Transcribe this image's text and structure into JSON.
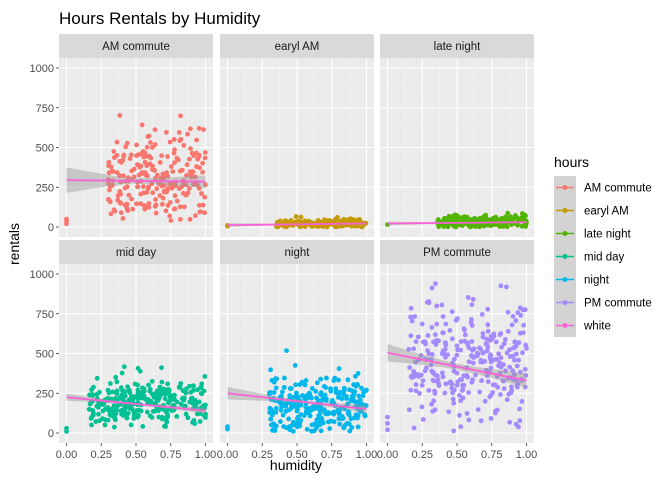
{
  "chart_data": {
    "type": "scatter",
    "title": "Hours Rentals by Humidity",
    "xlabel": "humidity",
    "ylabel": "rentals",
    "xlim": [
      0,
      1
    ],
    "ylim": [
      0,
      1000
    ],
    "x_ticks": [
      "0.00",
      "0.25",
      "0.50",
      "0.75",
      "1.00"
    ],
    "y_ticks": [
      "0",
      "250",
      "500",
      "750",
      "1000"
    ],
    "facet_layout": "2 rows x 3 columns, shared axes",
    "trend": "linear fit with grey confidence band, drawn in the color of the 'white' legend entry",
    "grid": true,
    "legend": {
      "title": "hours",
      "placement": "right",
      "entries": [
        {
          "label": "AM commute",
          "color": "#F8766D"
        },
        {
          "label": "earyl AM",
          "color": "#C49A00"
        },
        {
          "label": "late night",
          "color": "#53B400"
        },
        {
          "label": "mid day",
          "color": "#00C094"
        },
        {
          "label": "night",
          "color": "#00B6EB"
        },
        {
          "label": "PM commute",
          "color": "#A58AFF"
        },
        {
          "label": "white",
          "color": "#FB61D7"
        }
      ]
    },
    "facets": [
      {
        "label": "AM commute",
        "color": "#F8766D",
        "cluster": {
          "xmin": 0.3,
          "xmax": 1.0,
          "ymin": 40,
          "ymax": 800,
          "center": 320,
          "spread": 150,
          "n": 240
        },
        "outliers": [
          [
            0.0,
            20
          ],
          [
            0.0,
            40
          ],
          [
            0.0,
            50
          ]
        ],
        "fit": {
          "y_at_0": 295,
          "y_at_1": 285,
          "band_at_0": 80,
          "band_mid": 18,
          "band_at_1": 40
        }
      },
      {
        "label": "earyl AM",
        "color": "#C49A00",
        "cluster": {
          "xmin": 0.35,
          "xmax": 1.0,
          "ymin": 0,
          "ymax": 70,
          "center": 22,
          "spread": 15,
          "n": 180
        },
        "outliers": [
          [
            0.0,
            5
          ],
          [
            0.0,
            10
          ]
        ],
        "fit": {
          "y_at_0": 12,
          "y_at_1": 22,
          "band_at_0": 12,
          "band_mid": 3,
          "band_at_1": 5
        }
      },
      {
        "label": "late night",
        "color": "#53B400",
        "cluster": {
          "xmin": 0.35,
          "xmax": 1.0,
          "ymin": 0,
          "ymax": 100,
          "center": 35,
          "spread": 22,
          "n": 200
        },
        "outliers": [
          [
            0.0,
            15
          ]
        ],
        "fit": {
          "y_at_0": 22,
          "y_at_1": 30,
          "band_at_0": 12,
          "band_mid": 3,
          "band_at_1": 5
        }
      },
      {
        "label": "mid day",
        "color": "#00C094",
        "cluster": {
          "xmin": 0.16,
          "xmax": 1.0,
          "ymin": 30,
          "ymax": 460,
          "center": 190,
          "spread": 75,
          "n": 300
        },
        "outliers": [
          [
            0.0,
            10
          ],
          [
            0.0,
            30
          ]
        ],
        "fit": {
          "y_at_0": 225,
          "y_at_1": 140,
          "band_at_0": 22,
          "band_mid": 8,
          "band_at_1": 18
        }
      },
      {
        "label": "night",
        "color": "#00B6EB",
        "cluster": {
          "xmin": 0.3,
          "xmax": 1.0,
          "ymin": 10,
          "ymax": 520,
          "center": 180,
          "spread": 95,
          "n": 280
        },
        "outliers": [
          [
            0.0,
            25
          ],
          [
            0.0,
            40
          ]
        ],
        "fit": {
          "y_at_0": 250,
          "y_at_1": 150,
          "band_at_0": 40,
          "band_mid": 10,
          "band_at_1": 25
        }
      },
      {
        "label": "PM commute",
        "color": "#A58AFF",
        "cluster": {
          "xmin": 0.15,
          "xmax": 1.0,
          "ymin": 10,
          "ymax": 970,
          "center": 430,
          "spread": 190,
          "n": 300
        },
        "outliers": [
          [
            0.0,
            20
          ],
          [
            0.0,
            60
          ],
          [
            0.0,
            100
          ]
        ],
        "fit": {
          "y_at_0": 505,
          "y_at_1": 330,
          "band_at_0": 55,
          "band_mid": 20,
          "band_at_1": 45
        }
      }
    ]
  }
}
